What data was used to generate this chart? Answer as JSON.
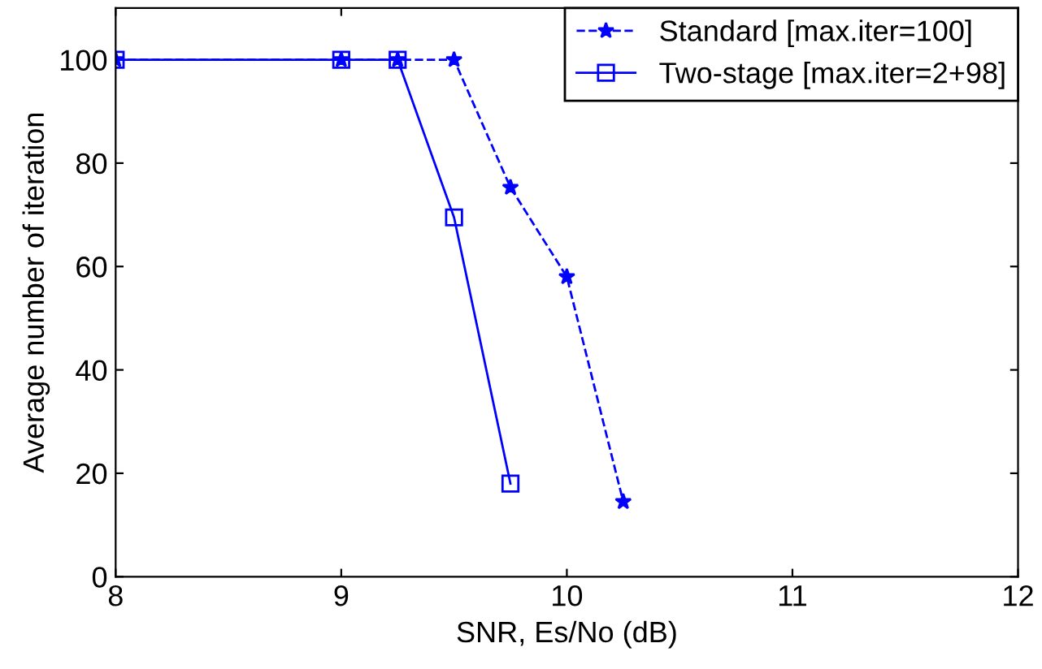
{
  "chart_data": {
    "type": "line",
    "xlabel": "SNR, Es/No (dB)",
    "ylabel": "Average number of iteration",
    "xlim": [
      8,
      12
    ],
    "xticks": [
      8,
      9,
      10,
      11,
      12
    ],
    "ylim": [
      0,
      110
    ],
    "yticks": [
      0,
      20,
      40,
      60,
      80,
      100
    ],
    "grid": false,
    "legend": "top right",
    "series": [
      {
        "name": "Standard [max.iter=100]",
        "color": "#0000ff",
        "marker": "star",
        "line_style": "dashed",
        "x": [
          8,
          9,
          9.25,
          9.5,
          9.75,
          10,
          10.25
        ],
        "values": [
          100,
          100,
          100,
          100,
          75.3,
          58,
          14.5
        ]
      },
      {
        "name": "Two-stage [max.iter=2+98]",
        "color": "#0000ff",
        "marker": "square",
        "line_style": "solid",
        "x": [
          8,
          9,
          9.25,
          9.5,
          9.75
        ],
        "values": [
          100,
          100,
          100,
          69.5,
          18
        ]
      }
    ]
  }
}
